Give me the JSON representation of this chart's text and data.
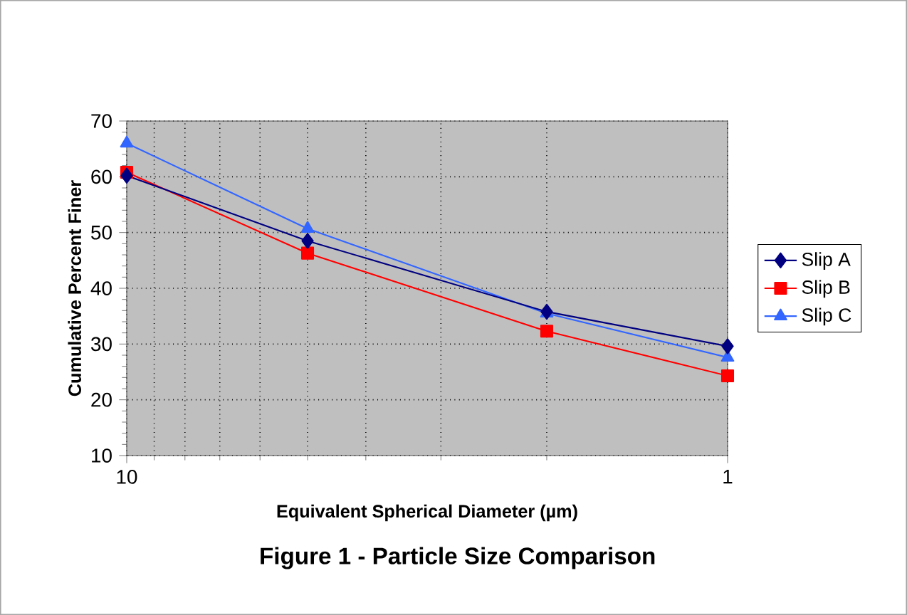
{
  "chart_data": {
    "type": "line",
    "xlabel": "Equivalent Spherical Diameter (µm)",
    "ylabel": "Cumulative Percent Finer",
    "annotations": [
      "Figure 1 - Particle Size Comparison"
    ],
    "x": [
      10,
      5,
      2,
      1
    ],
    "series": [
      {
        "name": "Slip A",
        "color": "#000080",
        "marker": "diamond",
        "values": [
          60.2,
          48.5,
          35.8,
          29.6
        ]
      },
      {
        "name": "Slip B",
        "color": "#ff0000",
        "marker": "square",
        "values": [
          60.8,
          46.3,
          32.3,
          24.3
        ]
      },
      {
        "name": "Slip C",
        "color": "#3366ff",
        "marker": "triangle",
        "values": [
          66,
          50.7,
          35.5,
          27.6
        ]
      }
    ],
    "log": "x",
    "xlim": [
      10,
      1
    ],
    "xticks": [
      10,
      1
    ],
    "ylim": [
      10,
      70
    ],
    "yticks": [
      10,
      20,
      30,
      40,
      50,
      60,
      70
    ],
    "grid": true,
    "legend": "right",
    "line_style": "solid"
  }
}
